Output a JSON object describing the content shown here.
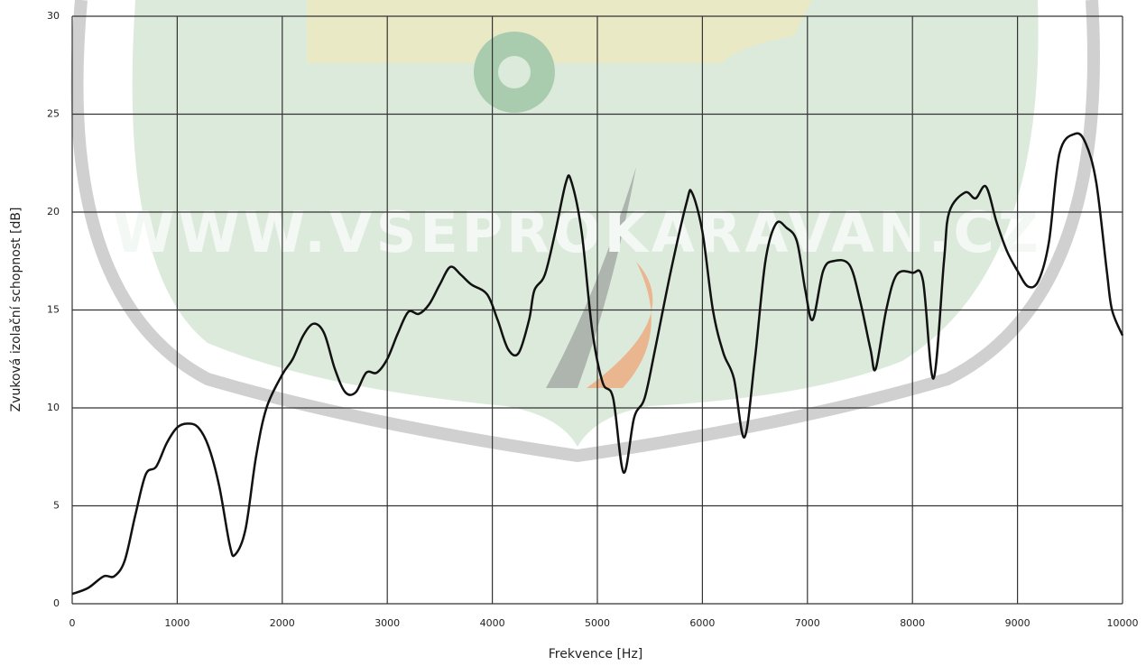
{
  "chart_data": {
    "type": "line",
    "watermark": "WWW.VSEPROKARAVAN.CZ",
    "xlabel": "Frekvence [Hz]",
    "ylabel": "Zvuková izolační schopnost [dB]",
    "xlim": [
      0,
      10000
    ],
    "xticks": [
      0,
      1000,
      2000,
      3000,
      4000,
      5000,
      6000,
      7000,
      8000,
      9000,
      10000
    ],
    "ylim": [
      0,
      30
    ],
    "yticks": [
      0,
      5,
      10,
      15,
      20,
      25,
      30
    ],
    "grid": true,
    "series": [
      {
        "color": "#111111",
        "x": [
          0,
          150,
          300,
          400,
          500,
          600,
          700,
          800,
          900,
          1000,
          1100,
          1200,
          1300,
          1400,
          1500,
          1550,
          1650,
          1750,
          1850,
          2000,
          2100,
          2200,
          2300,
          2400,
          2500,
          2600,
          2700,
          2800,
          2900,
          3000,
          3100,
          3200,
          3300,
          3400,
          3500,
          3600,
          3700,
          3800,
          3950,
          4050,
          4150,
          4250,
          4350,
          4400,
          4500,
          4600,
          4700,
          4750,
          4850,
          4950,
          5050,
          5150,
          5250,
          5350,
          5450,
          5550,
          5700,
          5850,
          5900,
          6000,
          6100,
          6200,
          6300,
          6400,
          6500,
          6600,
          6700,
          6800,
          6900,
          6980,
          7050,
          7150,
          7250,
          7400,
          7500,
          7600,
          7650,
          7750,
          7850,
          8000,
          8100,
          8200,
          8300,
          8350,
          8500,
          8600,
          8700,
          8800,
          8900,
          9000,
          9100,
          9200,
          9300,
          9400,
          9550,
          9650,
          9750,
          9850,
          9900,
          10000
        ],
        "values": [
          0.5,
          0.8,
          1.4,
          1.4,
          2.2,
          4.5,
          6.6,
          7.0,
          8.2,
          9.0,
          9.2,
          9.0,
          8.0,
          6.0,
          3.0,
          2.5,
          3.8,
          7.5,
          10.0,
          11.7,
          12.5,
          13.7,
          14.3,
          13.8,
          12.0,
          10.8,
          10.8,
          11.8,
          11.8,
          12.5,
          13.8,
          14.9,
          14.8,
          15.3,
          16.3,
          17.2,
          16.8,
          16.3,
          15.8,
          14.5,
          13.0,
          12.8,
          14.5,
          16.0,
          16.8,
          19.0,
          21.5,
          21.6,
          19.0,
          14.0,
          11.3,
          10.5,
          6.7,
          9.5,
          10.5,
          13.0,
          17.0,
          20.5,
          21.0,
          19.0,
          15.0,
          12.8,
          11.5,
          8.5,
          12.5,
          17.5,
          19.4,
          19.2,
          18.5,
          16.0,
          14.5,
          17.0,
          17.5,
          17.3,
          15.5,
          13.0,
          12.0,
          15.0,
          16.8,
          16.9,
          16.5,
          11.5,
          17.5,
          20.0,
          21.0,
          20.7,
          21.3,
          19.5,
          18.0,
          17.0,
          16.2,
          16.5,
          18.5,
          23.0,
          24.0,
          23.5,
          21.5,
          17.0,
          15.0,
          13.7
        ]
      }
    ]
  }
}
